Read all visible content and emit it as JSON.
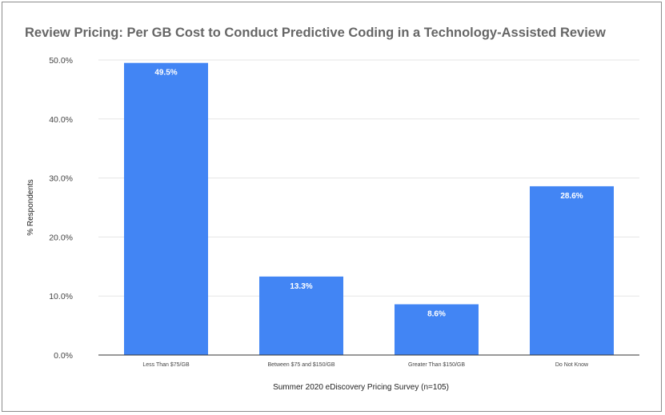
{
  "chart_data": {
    "type": "bar",
    "title": "Review Pricing: Per GB Cost to Conduct Predictive Coding in a Technology-Assisted Review",
    "xlabel": "Summer 2020 eDiscovery Pricing Survey (n=105)",
    "ylabel": "% Respondents",
    "categories": [
      "Less Than $75/GB",
      "Between $75 and $150/GB",
      "Greater Than $150/GB",
      "Do Not Know"
    ],
    "values": [
      49.5,
      13.3,
      8.6,
      28.6
    ],
    "data_labels": [
      "49.5%",
      "13.3%",
      "8.6%",
      "28.6%"
    ],
    "ylim": [
      0,
      50
    ],
    "yticks": [
      0,
      10,
      20,
      30,
      40,
      50
    ],
    "ytick_labels": [
      "0.0%",
      "10.0%",
      "20.0%",
      "30.0%",
      "40.0%",
      "50.0%"
    ],
    "grid": true,
    "bar_color": "#4285f4"
  }
}
